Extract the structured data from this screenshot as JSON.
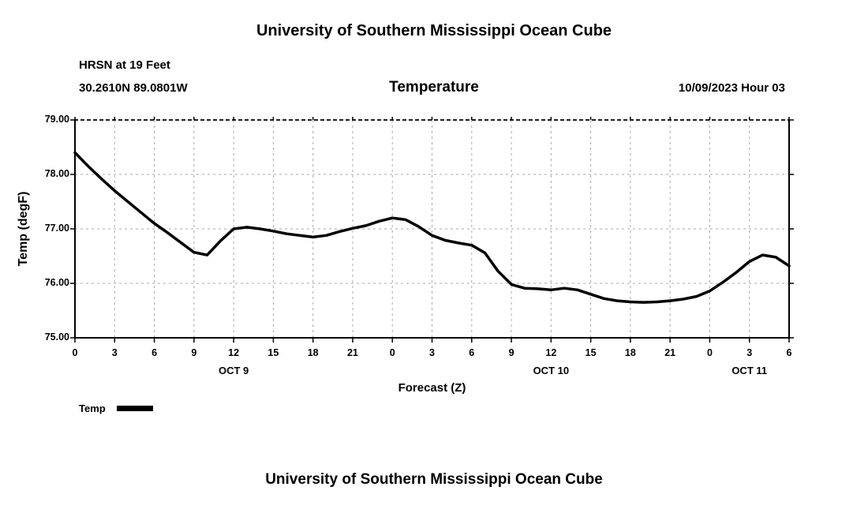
{
  "page": {
    "top_title": "University of Southern Mississippi Ocean Cube",
    "bottom_title": "University of Southern Mississippi Ocean Cube"
  },
  "header": {
    "station": "HRSN at 19 Feet",
    "coordinates": "30.2610N  89.0801W",
    "plot_title": "Temperature",
    "run_time": "10/09/2023 Hour 03"
  },
  "chart_data": {
    "type": "line",
    "title": "Temperature",
    "xlabel": "Forecast (Z)",
    "ylabel": "Temp (degF)",
    "ylim": [
      75,
      79
    ],
    "x_range_hours": [
      0,
      54
    ],
    "grid": true,
    "grid_style": "dashed",
    "grid_color": "#aaaaaa",
    "line_color": "#000000",
    "y_ticks": [
      {
        "value": 79,
        "label": "79.00"
      },
      {
        "value": 78,
        "label": "78.00"
      },
      {
        "value": 77,
        "label": "77.00"
      },
      {
        "value": 76,
        "label": "76.00"
      },
      {
        "value": 75,
        "label": "75.00"
      }
    ],
    "x_ticks": [
      {
        "hour": 0,
        "label": "0"
      },
      {
        "hour": 3,
        "label": "3"
      },
      {
        "hour": 6,
        "label": "6"
      },
      {
        "hour": 9,
        "label": "9"
      },
      {
        "hour": 12,
        "label": "12"
      },
      {
        "hour": 15,
        "label": "15"
      },
      {
        "hour": 18,
        "label": "18"
      },
      {
        "hour": 21,
        "label": "21"
      },
      {
        "hour": 24,
        "label": "0"
      },
      {
        "hour": 27,
        "label": "3"
      },
      {
        "hour": 30,
        "label": "6"
      },
      {
        "hour": 33,
        "label": "9"
      },
      {
        "hour": 36,
        "label": "12"
      },
      {
        "hour": 39,
        "label": "15"
      },
      {
        "hour": 42,
        "label": "18"
      },
      {
        "hour": 45,
        "label": "21"
      },
      {
        "hour": 48,
        "label": "0"
      },
      {
        "hour": 51,
        "label": "3"
      },
      {
        "hour": 54,
        "label": "6"
      }
    ],
    "date_labels": [
      {
        "hour": 12,
        "label": "OCT 9"
      },
      {
        "hour": 36,
        "label": "OCT 10"
      },
      {
        "hour": 51,
        "label": "OCT 11"
      }
    ],
    "legend": {
      "label": "Temp",
      "position": "bottom-left",
      "color": "#000000"
    },
    "series": [
      {
        "name": "Temp",
        "color": "#000000",
        "x_hours": [
          0,
          1,
          2,
          3,
          4,
          5,
          6,
          7,
          8,
          9,
          10,
          11,
          12,
          13,
          14,
          15,
          16,
          17,
          18,
          19,
          20,
          21,
          22,
          23,
          24,
          25,
          26,
          27,
          28,
          29,
          30,
          31,
          32,
          33,
          34,
          35,
          36,
          37,
          38,
          39,
          40,
          41,
          42,
          43,
          44,
          45,
          46,
          47,
          48,
          49,
          50,
          51,
          52,
          53,
          54
        ],
        "values": [
          78.4,
          78.15,
          77.92,
          77.7,
          77.5,
          77.3,
          77.1,
          76.93,
          76.75,
          76.57,
          76.52,
          76.78,
          77.0,
          77.03,
          77.0,
          76.96,
          76.91,
          76.88,
          76.85,
          76.88,
          76.95,
          77.01,
          77.06,
          77.14,
          77.2,
          77.17,
          77.04,
          76.88,
          76.79,
          76.74,
          76.7,
          76.56,
          76.22,
          75.98,
          75.91,
          75.9,
          75.88,
          75.91,
          75.88,
          75.8,
          75.72,
          75.68,
          75.66,
          75.65,
          75.66,
          75.68,
          75.71,
          75.76,
          75.86,
          76.02,
          76.2,
          76.4,
          76.52,
          76.48,
          76.32
        ]
      }
    ]
  }
}
